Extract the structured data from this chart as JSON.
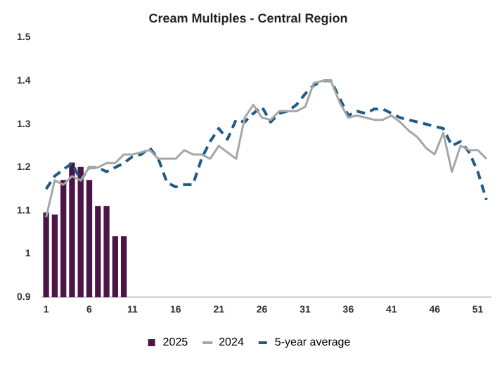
{
  "chart_data": {
    "type": "bar",
    "title": "Cream Multiples - Central Region",
    "x": [
      1,
      2,
      3,
      4,
      5,
      6,
      7,
      8,
      9,
      10,
      11,
      12,
      13,
      14,
      15,
      16,
      17,
      18,
      19,
      20,
      21,
      22,
      23,
      24,
      25,
      26,
      27,
      28,
      29,
      30,
      31,
      32,
      33,
      34,
      35,
      36,
      37,
      38,
      39,
      40,
      41,
      42,
      43,
      44,
      45,
      46,
      47,
      48,
      49,
      50,
      51,
      52
    ],
    "xlim": [
      0.5,
      52.5
    ],
    "xticks": [
      1,
      6,
      11,
      16,
      21,
      26,
      31,
      36,
      41,
      46,
      51
    ],
    "series": [
      {
        "name": "2025",
        "color": "#4b1548",
        "values": [
          1.095,
          1.09,
          1.17,
          1.21,
          1.2,
          1.17,
          1.11,
          1.11,
          1.04,
          1.04,
          null,
          null,
          null,
          null,
          null,
          null,
          null,
          null,
          null,
          null,
          null,
          null,
          null,
          null,
          null,
          null,
          null,
          null,
          null,
          null,
          null,
          null,
          null,
          null,
          null,
          null,
          null,
          null,
          null,
          null,
          null,
          null,
          null,
          null,
          null,
          null,
          null,
          null,
          null,
          null,
          null,
          null
        ]
      },
      {
        "name": "2024",
        "type": "line",
        "color": "#a6a6a6",
        "line_style": "solid",
        "values": [
          1.085,
          1.17,
          1.16,
          1.18,
          1.17,
          1.2,
          1.2,
          1.21,
          1.21,
          1.23,
          1.23,
          1.235,
          1.24,
          1.22,
          1.22,
          1.22,
          1.24,
          1.23,
          1.23,
          1.22,
          1.25,
          1.235,
          1.22,
          1.315,
          1.345,
          1.315,
          1.31,
          1.33,
          1.33,
          1.33,
          1.34,
          1.395,
          1.4,
          1.4,
          1.35,
          1.315,
          1.32,
          1.315,
          1.31,
          1.31,
          1.32,
          1.305,
          1.285,
          1.27,
          1.245,
          1.23,
          1.28,
          1.19,
          1.25,
          1.24,
          1.24,
          1.22
        ]
      },
      {
        "name": "5-year average",
        "type": "line",
        "color": "#1f5b87",
        "line_style": "dashed",
        "values": [
          1.15,
          1.18,
          1.195,
          1.21,
          1.17,
          1.2,
          1.2,
          1.19,
          1.2,
          1.21,
          1.225,
          1.23,
          1.245,
          1.22,
          1.165,
          1.155,
          1.16,
          1.16,
          1.22,
          1.26,
          1.29,
          1.265,
          1.31,
          1.305,
          1.325,
          1.34,
          1.305,
          1.325,
          1.33,
          1.345,
          1.37,
          1.39,
          1.4,
          1.4,
          1.36,
          1.32,
          1.33,
          1.325,
          1.335,
          1.335,
          1.325,
          1.315,
          1.31,
          1.305,
          1.3,
          1.295,
          1.29,
          1.25,
          1.26,
          1.235,
          1.19,
          1.125
        ]
      }
    ],
    "ylim": [
      0.9,
      1.5
    ],
    "yticks": [
      0.9,
      1,
      1.1,
      1.2,
      1.3,
      1.4,
      1.5
    ],
    "grid": false,
    "legend": "bottom",
    "marker": "none"
  }
}
